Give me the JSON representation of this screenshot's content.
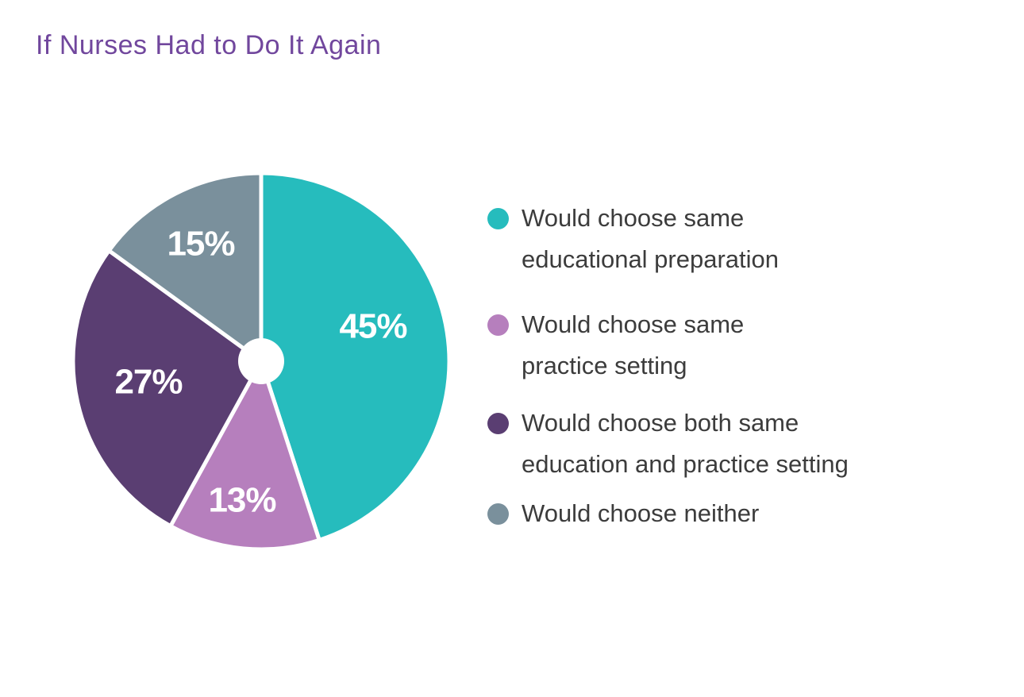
{
  "page": {
    "background": "#FFFFFF"
  },
  "header": {
    "title": "If Nurses Had to Do It Again",
    "title_color": "#71479D"
  },
  "chart_data": {
    "type": "pie",
    "title": "If Nurses Had to Do It Again",
    "start_angle_deg": -90,
    "direction": "clockwise",
    "donut_hole": true,
    "slice_separator_color": "#FFFFFF",
    "value_label_color": "#FFFFFF",
    "legend_position": "right",
    "slices": [
      {
        "label": "Would choose same educational preparation",
        "value": 45,
        "display": "45%",
        "color": "#26BCBD"
      },
      {
        "label": "Would choose same practice setting",
        "value": 13,
        "display": "13%",
        "color": "#B67FBD"
      },
      {
        "label": "Would choose both same education and practice setting",
        "value": 27,
        "display": "27%",
        "color": "#5A3E72"
      },
      {
        "label": "Would choose neither",
        "value": 15,
        "display": "15%",
        "color": "#7A909C"
      }
    ]
  },
  "legend": {
    "text_color": "#3C3C3C",
    "items": [
      {
        "lines": [
          "Would choose same",
          "educational preparation"
        ],
        "color": "#26BCBD",
        "icon": "legend-swatch-teal"
      },
      {
        "lines": [
          "Would choose same",
          "practice setting"
        ],
        "color": "#B67FBD",
        "icon": "legend-swatch-orchid"
      },
      {
        "lines": [
          "Would choose both same",
          "education and practice setting"
        ],
        "color": "#5A3E72",
        "icon": "legend-swatch-purple"
      },
      {
        "lines": [
          "Would choose neither"
        ],
        "color": "#7A909C",
        "icon": "legend-swatch-gray"
      }
    ]
  }
}
